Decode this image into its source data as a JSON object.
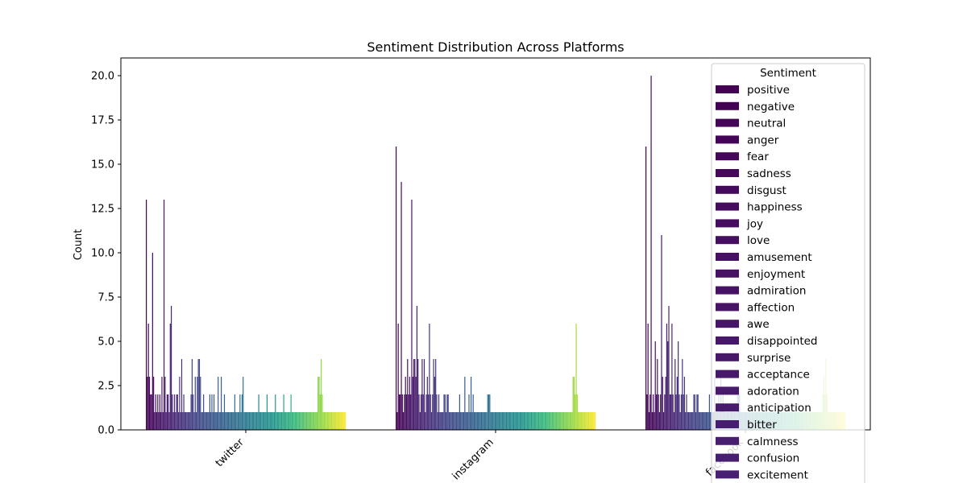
{
  "chart_data": {
    "type": "bar",
    "title": "Sentiment Distribution Across Platforms",
    "xlabel": "",
    "ylabel": "Count",
    "ylim": [
      0,
      21
    ],
    "yticks": [
      "0.0",
      "2.5",
      "5.0",
      "7.5",
      "10.0",
      "12.5",
      "15.0",
      "17.5",
      "20.0"
    ],
    "categories": [
      "twitter",
      "instagram",
      "facebook"
    ],
    "grid": false,
    "legend": {
      "title": "Sentiment",
      "placement": "upper right",
      "entries": [
        "positive",
        "negative",
        "neutral",
        "anger",
        "fear",
        "sadness",
        "disgust",
        "happiness",
        "joy",
        "love",
        "amusement",
        "enjoyment",
        "admiration",
        "affection",
        "awe",
        "disappointed",
        "surprise",
        "acceptance",
        "adoration",
        "anticipation",
        "bitter",
        "calmness",
        "confusion",
        "excitement"
      ]
    },
    "colormap": "viridis",
    "palette_endpoints": [
      "#440154",
      "#fde725"
    ],
    "n_hue_levels": 192,
    "series_values": {
      "twitter": [
        13,
        3,
        6,
        3,
        2,
        2,
        10,
        3,
        1,
        2,
        1,
        2,
        1,
        2,
        1,
        3,
        1,
        13,
        3,
        1,
        2,
        2,
        1,
        6,
        7,
        2,
        1,
        2,
        1,
        2,
        2,
        1,
        3,
        1,
        4,
        1,
        2,
        1,
        1,
        1,
        1,
        1,
        1,
        2,
        4,
        2,
        1,
        3,
        1,
        3,
        4,
        4,
        3,
        1,
        1,
        2,
        1,
        1,
        1,
        1,
        1,
        2,
        1,
        2,
        1,
        2,
        1,
        1,
        1,
        3,
        1,
        1,
        3,
        1,
        1,
        2,
        1,
        1,
        1,
        1,
        1,
        1,
        1,
        1,
        1,
        2,
        1,
        1,
        1,
        1,
        2,
        1,
        2,
        3,
        1,
        1,
        1,
        1,
        1,
        1,
        1,
        1,
        1,
        1,
        1,
        1,
        1,
        1,
        2,
        1,
        1,
        1,
        1,
        1,
        1,
        1,
        2,
        1,
        1,
        1,
        1,
        1,
        1,
        1,
        2,
        1,
        1,
        1,
        1,
        1,
        1,
        1,
        2,
        1,
        1,
        1,
        1,
        1,
        1,
        2,
        1,
        1,
        1,
        1,
        1,
        1,
        1,
        1,
        1,
        1,
        1,
        1,
        1,
        1,
        1,
        1,
        1,
        1,
        1,
        1,
        1,
        1,
        1,
        1,
        1,
        3,
        3,
        2,
        4,
        2,
        1,
        1,
        1,
        1,
        1,
        1,
        1,
        1,
        1,
        1,
        1,
        1,
        1,
        1,
        1,
        1,
        1,
        1,
        1,
        1,
        1,
        1
      ],
      "instagram": [
        16,
        1,
        6,
        2,
        2,
        14,
        2,
        1,
        2,
        3,
        2,
        4,
        2,
        3,
        2,
        13,
        3,
        4,
        4,
        3,
        7,
        4,
        2,
        1,
        2,
        4,
        2,
        4,
        1,
        2,
        3,
        2,
        6,
        2,
        1,
        2,
        4,
        3,
        4,
        2,
        1,
        2,
        1,
        1,
        1,
        1,
        2,
        2,
        1,
        2,
        2,
        1,
        1,
        1,
        1,
        1,
        1,
        1,
        1,
        1,
        1,
        2,
        1,
        1,
        1,
        1,
        3,
        1,
        1,
        1,
        2,
        1,
        3,
        1,
        2,
        1,
        1,
        1,
        1,
        1,
        1,
        1,
        1,
        1,
        1,
        1,
        1,
        1,
        2,
        2,
        2,
        1,
        1,
        1,
        1,
        1,
        1,
        1,
        1,
        1,
        1,
        1,
        1,
        1,
        1,
        1,
        1,
        1,
        1,
        1,
        1,
        1,
        1,
        1,
        1,
        1,
        1,
        1,
        1,
        1,
        1,
        1,
        1,
        1,
        1,
        1,
        1,
        1,
        1,
        1,
        1,
        1,
        1,
        1,
        1,
        1,
        1,
        1,
        1,
        1,
        1,
        1,
        1,
        1,
        1,
        1,
        1,
        1,
        1,
        1,
        1,
        1,
        1,
        1,
        1,
        1,
        1,
        1,
        1,
        1,
        1,
        1,
        1,
        1,
        1,
        1,
        1,
        1,
        1,
        1,
        3,
        3,
        2,
        6,
        2,
        1,
        1,
        1,
        1,
        1,
        1,
        1,
        1,
        1,
        1,
        1,
        1,
        1,
        1,
        1,
        1,
        1
      ],
      "facebook": [
        16,
        2,
        6,
        1,
        2,
        20,
        1,
        2,
        1,
        5,
        2,
        4,
        2,
        1,
        2,
        11,
        3,
        1,
        2,
        3,
        6,
        5,
        7,
        2,
        2,
        6,
        2,
        1,
        4,
        2,
        3,
        5,
        2,
        1,
        2,
        4,
        2,
        3,
        1,
        2,
        1,
        1,
        1,
        1,
        1,
        1,
        2,
        2,
        1,
        2,
        2,
        1,
        1,
        1,
        1,
        1,
        1,
        1,
        1,
        1,
        1,
        2,
        1,
        1,
        1,
        1,
        3,
        1,
        1,
        1,
        2,
        1,
        3,
        1,
        2,
        1,
        1,
        1,
        1,
        1,
        1,
        1,
        1,
        1,
        1,
        1,
        1,
        1,
        2,
        2,
        2,
        1,
        1,
        1,
        1,
        1,
        1,
        1,
        1,
        1,
        1,
        1,
        1,
        1,
        1,
        1,
        1,
        1,
        1,
        1,
        1,
        1,
        1,
        1,
        1,
        1,
        1,
        1,
        1,
        1,
        1,
        1,
        1,
        1,
        1,
        1,
        1,
        1,
        1,
        1,
        1,
        1,
        1,
        1,
        1,
        1,
        1,
        1,
        1,
        1,
        1,
        1,
        1,
        1,
        1,
        1,
        1,
        1,
        1,
        1,
        1,
        1,
        1,
        1,
        1,
        1,
        1,
        1,
        1,
        1,
        1,
        1,
        1,
        1,
        1,
        1,
        1,
        1,
        1,
        1,
        2,
        3,
        2,
        4,
        2,
        1,
        1,
        1,
        1,
        1,
        1,
        1,
        1,
        1,
        1,
        1,
        1,
        1,
        1,
        1,
        1,
        1
      ]
    }
  }
}
